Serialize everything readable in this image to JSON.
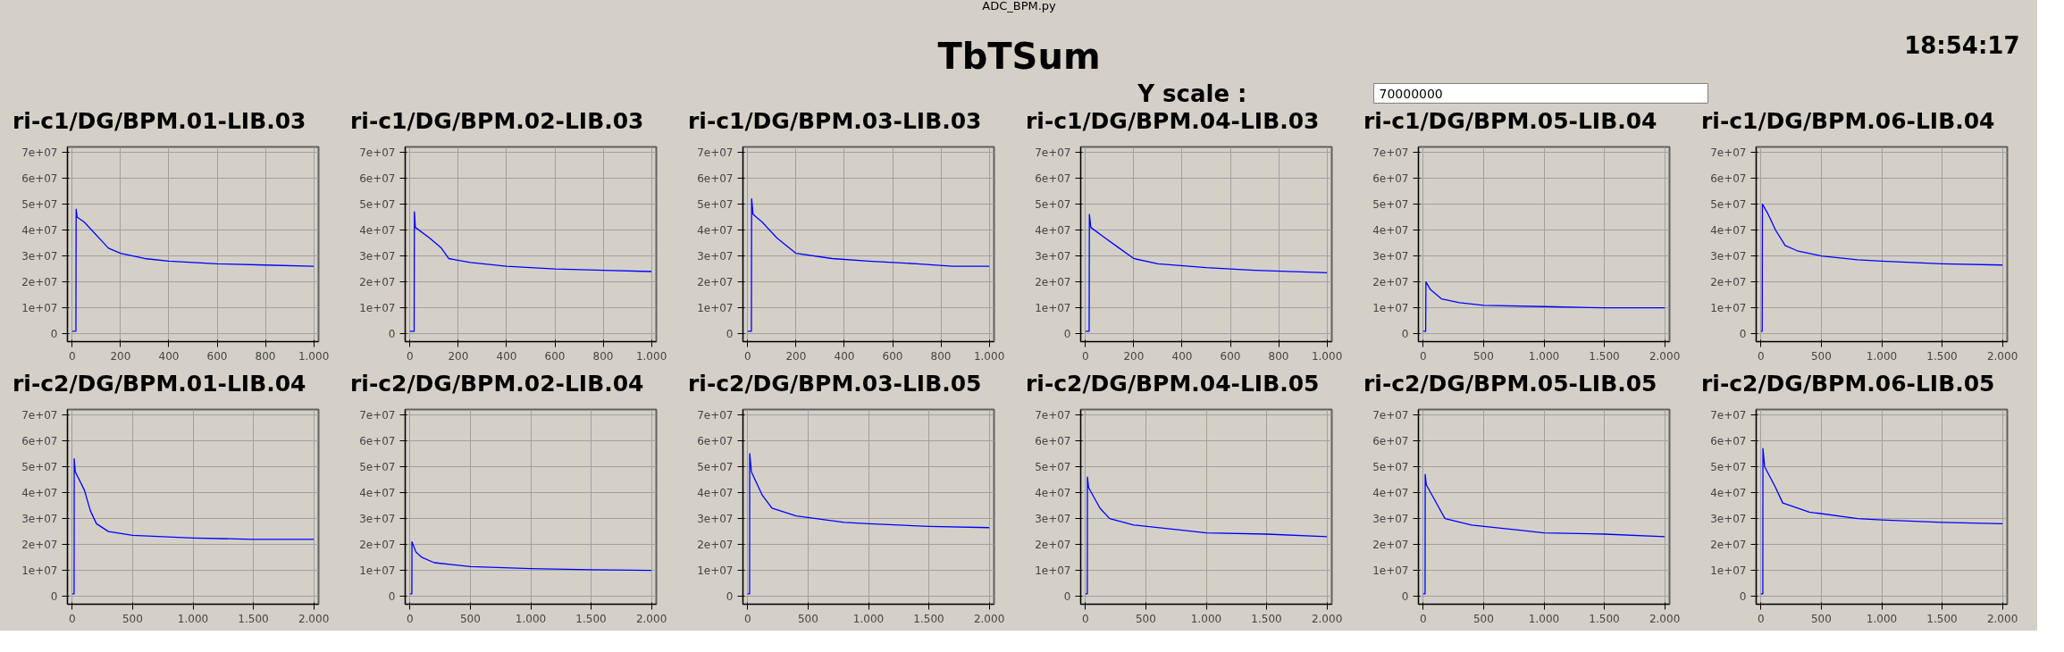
{
  "chart_data": [
    {
      "type": "other",
      "title": "TbTSum",
      "annotations": [
        "ADC_BPM.py",
        "18:54:17",
        "Y scale :",
        "70000000"
      ]
    },
    {
      "type": "line",
      "title": "ri-c1/DG/BPM.01-LIB.03",
      "xlim": [
        -20,
        1020
      ],
      "ylim": [
        -3000000,
        72000000
      ],
      "grid": true,
      "xticks": [
        0,
        200,
        400,
        600,
        800,
        {
          "value": 1000,
          "label": "1.000"
        }
      ],
      "yticks": [
        0,
        {
          "value": 10000000,
          "label": "1e+07"
        },
        {
          "value": 20000000,
          "label": "2e+07"
        },
        {
          "value": 30000000,
          "label": "3e+07"
        },
        {
          "value": 40000000,
          "label": "4e+07"
        },
        {
          "value": 50000000,
          "label": "5e+07"
        },
        {
          "value": 60000000,
          "label": "6e+07"
        },
        {
          "value": 70000000,
          "label": "7e+07"
        }
      ],
      "series": [
        {
          "color": "#0000ff",
          "x": [
            0,
            15,
            16,
            20,
            50,
            80,
            120,
            150,
            200,
            300,
            400,
            600,
            800,
            1000
          ],
          "values": [
            1000000,
            1000000,
            48000000,
            45000000,
            43000000,
            40000000,
            36000000,
            33000000,
            31000000,
            29000000,
            28000000,
            27000000,
            26500000,
            26000000
          ]
        }
      ]
    },
    {
      "type": "line",
      "title": "ri-c1/DG/BPM.02-LIB.03",
      "xlim": [
        -20,
        1020
      ],
      "ylim": [
        -3000000,
        72000000
      ],
      "grid": true,
      "xticks": [
        0,
        200,
        400,
        600,
        800,
        {
          "value": 1000,
          "label": "1.000"
        }
      ],
      "yticks": [
        0,
        {
          "value": 10000000,
          "label": "1e+07"
        },
        {
          "value": 20000000,
          "label": "2e+07"
        },
        {
          "value": 30000000,
          "label": "3e+07"
        },
        {
          "value": 40000000,
          "label": "4e+07"
        },
        {
          "value": 50000000,
          "label": "5e+07"
        },
        {
          "value": 60000000,
          "label": "6e+07"
        },
        {
          "value": 70000000,
          "label": "7e+07"
        }
      ],
      "series": [
        {
          "color": "#0000ff",
          "x": [
            0,
            17,
            18,
            22,
            80,
            130,
            160,
            250,
            400,
            600,
            800,
            1000
          ],
          "values": [
            1000000,
            1000000,
            47000000,
            41000000,
            37000000,
            33000000,
            29000000,
            27500000,
            26000000,
            25000000,
            24500000,
            24000000
          ]
        }
      ]
    },
    {
      "type": "line",
      "title": "ri-c1/DG/BPM.03-LIB.03",
      "xlim": [
        -20,
        1020
      ],
      "ylim": [
        -3000000,
        72000000
      ],
      "grid": true,
      "xticks": [
        0,
        200,
        400,
        600,
        800,
        {
          "value": 1000,
          "label": "1.000"
        }
      ],
      "yticks": [
        0,
        {
          "value": 10000000,
          "label": "1e+07"
        },
        {
          "value": 20000000,
          "label": "2e+07"
        },
        {
          "value": 30000000,
          "label": "3e+07"
        },
        {
          "value": 40000000,
          "label": "4e+07"
        },
        {
          "value": 50000000,
          "label": "5e+07"
        },
        {
          "value": 60000000,
          "label": "6e+07"
        },
        {
          "value": 70000000,
          "label": "7e+07"
        }
      ],
      "series": [
        {
          "color": "#0000ff",
          "x": [
            0,
            15,
            16,
            22,
            60,
            120,
            200,
            350,
            500,
            700,
            850,
            1000
          ],
          "values": [
            1000000,
            1000000,
            52000000,
            46000000,
            43000000,
            37000000,
            31000000,
            29000000,
            28000000,
            27000000,
            26000000,
            26000000
          ]
        }
      ]
    },
    {
      "type": "line",
      "title": "ri-c1/DG/BPM.04-LIB.03",
      "xlim": [
        -20,
        1020
      ],
      "ylim": [
        -3000000,
        72000000
      ],
      "grid": true,
      "xticks": [
        0,
        200,
        400,
        600,
        800,
        {
          "value": 1000,
          "label": "1.000"
        }
      ],
      "yticks": [
        0,
        {
          "value": 10000000,
          "label": "1e+07"
        },
        {
          "value": 20000000,
          "label": "2e+07"
        },
        {
          "value": 30000000,
          "label": "3e+07"
        },
        {
          "value": 40000000,
          "label": "4e+07"
        },
        {
          "value": 50000000,
          "label": "5e+07"
        },
        {
          "value": 60000000,
          "label": "6e+07"
        },
        {
          "value": 70000000,
          "label": "7e+07"
        }
      ],
      "series": [
        {
          "color": "#0000ff",
          "x": [
            0,
            15,
            16,
            22,
            80,
            140,
            200,
            300,
            500,
            700,
            1000
          ],
          "values": [
            1000000,
            1000000,
            46000000,
            41000000,
            37000000,
            33000000,
            29000000,
            27000000,
            25500000,
            24500000,
            23500000
          ]
        }
      ]
    },
    {
      "type": "line",
      "title": "ri-c1/DG/BPM.05-LIB.04",
      "xlim": [
        -40,
        2040
      ],
      "ylim": [
        -3000000,
        72000000
      ],
      "grid": true,
      "xticks": [
        0,
        500,
        {
          "value": 1000,
          "label": "1.000"
        },
        {
          "value": 1500,
          "label": "1.500"
        },
        {
          "value": 2000,
          "label": "2.000"
        }
      ],
      "yticks": [
        0,
        {
          "value": 10000000,
          "label": "1e+07"
        },
        {
          "value": 20000000,
          "label": "2e+07"
        },
        {
          "value": 30000000,
          "label": "3e+07"
        },
        {
          "value": 40000000,
          "label": "4e+07"
        },
        {
          "value": 50000000,
          "label": "5e+07"
        },
        {
          "value": 60000000,
          "label": "6e+07"
        },
        {
          "value": 70000000,
          "label": "7e+07"
        }
      ],
      "series": [
        {
          "color": "#0000ff",
          "x": [
            0,
            20,
            22,
            60,
            150,
            300,
            500,
            1000,
            1500,
            2000
          ],
          "values": [
            1000000,
            1000000,
            20000000,
            17000000,
            13500000,
            12000000,
            11000000,
            10500000,
            10000000,
            10000000
          ]
        }
      ]
    },
    {
      "type": "line",
      "title": "ri-c1/DG/BPM.06-LIB.04",
      "xlim": [
        -40,
        2040
      ],
      "ylim": [
        -3000000,
        72000000
      ],
      "grid": true,
      "xticks": [
        0,
        500,
        {
          "value": 1000,
          "label": "1.000"
        },
        {
          "value": 1500,
          "label": "1.500"
        },
        {
          "value": 2000,
          "label": "2.000"
        }
      ],
      "yticks": [
        0,
        {
          "value": 10000000,
          "label": "1e+07"
        },
        {
          "value": 20000000,
          "label": "2e+07"
        },
        {
          "value": 30000000,
          "label": "3e+07"
        },
        {
          "value": 40000000,
          "label": "4e+07"
        },
        {
          "value": 50000000,
          "label": "5e+07"
        },
        {
          "value": 60000000,
          "label": "6e+07"
        },
        {
          "value": 70000000,
          "label": "7e+07"
        }
      ],
      "series": [
        {
          "color": "#0000ff",
          "x": [
            0,
            10,
            12,
            60,
            120,
            200,
            300,
            500,
            800,
            1000,
            1500,
            2000
          ],
          "values": [
            1000000,
            1000000,
            50000000,
            46000000,
            40000000,
            34000000,
            32000000,
            30000000,
            28500000,
            28000000,
            27000000,
            26500000
          ]
        }
      ]
    },
    {
      "type": "line",
      "title": "ri-c2/DG/BPM.01-LIB.04",
      "xlim": [
        -40,
        2040
      ],
      "ylim": [
        -3000000,
        72000000
      ],
      "grid": true,
      "xticks": [
        0,
        500,
        {
          "value": 1000,
          "label": "1.000"
        },
        {
          "value": 1500,
          "label": "1.500"
        },
        {
          "value": 2000,
          "label": "2.000"
        }
      ],
      "yticks": [
        0,
        {
          "value": 10000000,
          "label": "1e+07"
        },
        {
          "value": 20000000,
          "label": "2e+07"
        },
        {
          "value": 30000000,
          "label": "3e+07"
        },
        {
          "value": 40000000,
          "label": "4e+07"
        },
        {
          "value": 50000000,
          "label": "5e+07"
        },
        {
          "value": 60000000,
          "label": "6e+07"
        },
        {
          "value": 70000000,
          "label": "7e+07"
        }
      ],
      "series": [
        {
          "color": "#0000ff",
          "x": [
            0,
            15,
            16,
            25,
            100,
            150,
            200,
            300,
            500,
            1000,
            1500,
            2000
          ],
          "values": [
            1000000,
            1000000,
            53000000,
            48000000,
            41000000,
            33000000,
            28000000,
            25000000,
            23500000,
            22500000,
            22000000,
            22000000
          ]
        }
      ]
    },
    {
      "type": "line",
      "title": "ri-c2/DG/BPM.02-LIB.04",
      "xlim": [
        -40,
        2040
      ],
      "ylim": [
        -3000000,
        72000000
      ],
      "grid": true,
      "xticks": [
        0,
        500,
        {
          "value": 1000,
          "label": "1.000"
        },
        {
          "value": 1500,
          "label": "1.500"
        },
        {
          "value": 2000,
          "label": "2.000"
        }
      ],
      "yticks": [
        0,
        {
          "value": 10000000,
          "label": "1e+07"
        },
        {
          "value": 20000000,
          "label": "2e+07"
        },
        {
          "value": 30000000,
          "label": "3e+07"
        },
        {
          "value": 40000000,
          "label": "4e+07"
        },
        {
          "value": 50000000,
          "label": "5e+07"
        },
        {
          "value": 60000000,
          "label": "6e+07"
        },
        {
          "value": 70000000,
          "label": "7e+07"
        }
      ],
      "series": [
        {
          "color": "#0000ff",
          "x": [
            0,
            15,
            16,
            50,
            100,
            200,
            500,
            1000,
            1500,
            2000
          ],
          "values": [
            1000000,
            1000000,
            21000000,
            17000000,
            15000000,
            13000000,
            11500000,
            10700000,
            10300000,
            10000000
          ]
        }
      ]
    },
    {
      "type": "line",
      "title": "ri-c2/DG/BPM.03-LIB.05",
      "xlim": [
        -40,
        2040
      ],
      "ylim": [
        -3000000,
        72000000
      ],
      "grid": true,
      "xticks": [
        0,
        500,
        {
          "value": 1000,
          "label": "1.000"
        },
        {
          "value": 1500,
          "label": "1.500"
        },
        {
          "value": 2000,
          "label": "2.000"
        }
      ],
      "yticks": [
        0,
        {
          "value": 10000000,
          "label": "1e+07"
        },
        {
          "value": 20000000,
          "label": "2e+07"
        },
        {
          "value": 30000000,
          "label": "3e+07"
        },
        {
          "value": 40000000,
          "label": "4e+07"
        },
        {
          "value": 50000000,
          "label": "5e+07"
        },
        {
          "value": 60000000,
          "label": "6e+07"
        },
        {
          "value": 70000000,
          "label": "7e+07"
        }
      ],
      "series": [
        {
          "color": "#0000ff",
          "x": [
            0,
            15,
            16,
            30,
            120,
            200,
            400,
            800,
            1000,
            1500,
            2000
          ],
          "values": [
            1000000,
            1000000,
            55000000,
            48000000,
            39000000,
            34000000,
            31000000,
            28500000,
            28000000,
            27000000,
            26500000
          ]
        }
      ]
    },
    {
      "type": "line",
      "title": "ri-c2/DG/BPM.04-LIB.05",
      "xlim": [
        -40,
        2040
      ],
      "ylim": [
        -3000000,
        72000000
      ],
      "grid": true,
      "xticks": [
        0,
        500,
        {
          "value": 1000,
          "label": "1.000"
        },
        {
          "value": 1500,
          "label": "1.500"
        },
        {
          "value": 2000,
          "label": "2.000"
        }
      ],
      "yticks": [
        0,
        {
          "value": 10000000,
          "label": "1e+07"
        },
        {
          "value": 20000000,
          "label": "2e+07"
        },
        {
          "value": 30000000,
          "label": "3e+07"
        },
        {
          "value": 40000000,
          "label": "4e+07"
        },
        {
          "value": 50000000,
          "label": "5e+07"
        },
        {
          "value": 60000000,
          "label": "6e+07"
        },
        {
          "value": 70000000,
          "label": "7e+07"
        }
      ],
      "series": [
        {
          "color": "#0000ff",
          "x": [
            0,
            15,
            16,
            25,
            120,
            200,
            400,
            800,
            1000,
            1500,
            2000
          ],
          "values": [
            1000000,
            1000000,
            46000000,
            42000000,
            34000000,
            30000000,
            27500000,
            25500000,
            24500000,
            24000000,
            23000000
          ]
        }
      ]
    },
    {
      "type": "line",
      "title": "ri-c2/DG/BPM.05-LIB.05",
      "xlim": [
        -40,
        2040
      ],
      "ylim": [
        -3000000,
        72000000
      ],
      "grid": true,
      "xticks": [
        0,
        500,
        {
          "value": 1000,
          "label": "1.000"
        },
        {
          "value": 1500,
          "label": "1.500"
        },
        {
          "value": 2000,
          "label": "2.000"
        }
      ],
      "yticks": [
        0,
        {
          "value": 10000000,
          "label": "1e+07"
        },
        {
          "value": 20000000,
          "label": "2e+07"
        },
        {
          "value": 30000000,
          "label": "3e+07"
        },
        {
          "value": 40000000,
          "label": "4e+07"
        },
        {
          "value": 50000000,
          "label": "5e+07"
        },
        {
          "value": 60000000,
          "label": "6e+07"
        },
        {
          "value": 70000000,
          "label": "7e+07"
        }
      ],
      "series": [
        {
          "color": "#0000ff",
          "x": [
            0,
            15,
            16,
            25,
            120,
            180,
            400,
            800,
            1000,
            1500,
            2000
          ],
          "values": [
            1000000,
            1000000,
            47000000,
            43000000,
            35000000,
            30000000,
            27500000,
            25500000,
            24500000,
            24000000,
            23000000
          ]
        }
      ]
    },
    {
      "type": "line",
      "title": "ri-c2/DG/BPM.06-LIB.05",
      "xlim": [
        -40,
        2040
      ],
      "ylim": [
        -3000000,
        72000000
      ],
      "grid": true,
      "xticks": [
        0,
        500,
        {
          "value": 1000,
          "label": "1.000"
        },
        {
          "value": 1500,
          "label": "1.500"
        },
        {
          "value": 2000,
          "label": "2.000"
        }
      ],
      "yticks": [
        0,
        {
          "value": 10000000,
          "label": "1e+07"
        },
        {
          "value": 20000000,
          "label": "2e+07"
        },
        {
          "value": 30000000,
          "label": "3e+07"
        },
        {
          "value": 40000000,
          "label": "4e+07"
        },
        {
          "value": 50000000,
          "label": "5e+07"
        },
        {
          "value": 60000000,
          "label": "6e+07"
        },
        {
          "value": 70000000,
          "label": "7e+07"
        }
      ],
      "series": [
        {
          "color": "#0000ff",
          "x": [
            0,
            15,
            16,
            30,
            120,
            180,
            400,
            800,
            1000,
            1500,
            2000
          ],
          "values": [
            1000000,
            1000000,
            57000000,
            50000000,
            42000000,
            36000000,
            32500000,
            30000000,
            29500000,
            28500000,
            28000000
          ]
        }
      ]
    }
  ]
}
